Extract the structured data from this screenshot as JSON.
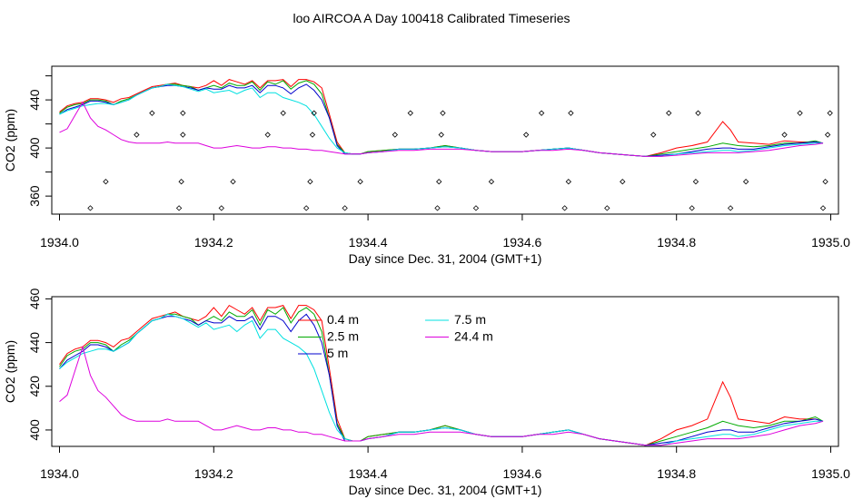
{
  "figure": {
    "title": "loo AIRCOA A  Day 100418  Calibrated Timeseries"
  },
  "chart_data": [
    {
      "type": "scatter",
      "xlabel": "Day since Dec. 31, 2004 (GMT+1)",
      "ylabel": "CO2 (ppm)",
      "xlim": [
        1933.99,
        1935.01
      ],
      "ylim": [
        345,
        468
      ],
      "xticks": [
        1934.0,
        1934.2,
        1934.4,
        1934.6,
        1934.8,
        1935.0
      ],
      "xtick_labels": [
        "1934.0",
        "1934.2",
        "1934.4",
        "1934.6",
        "1934.8",
        "1935.0"
      ],
      "yticks": [
        360,
        400,
        440
      ],
      "ytick_labels": [
        "360",
        "400",
        "440"
      ],
      "ytick_minor": [
        380,
        420,
        460
      ],
      "legend": null,
      "series": [
        {
          "key": "r",
          "color": "#ff0000"
        },
        {
          "key": "g",
          "color": "#00aa00"
        },
        {
          "key": "b",
          "color": "#0000cc"
        },
        {
          "key": "c",
          "color": "#00e0e0"
        },
        {
          "key": "m",
          "color": "#dd00dd"
        }
      ],
      "markers": {
        "x": [
          1934.04,
          1934.06,
          1934.1,
          1934.12,
          1934.155,
          1934.158,
          1934.16,
          1934.16,
          1934.21,
          1934.225,
          1934.27,
          1934.29,
          1934.32,
          1934.325,
          1934.328,
          1934.33,
          1934.37,
          1934.39,
          1934.435,
          1934.455,
          1934.49,
          1934.492,
          1934.495,
          1934.497,
          1934.54,
          1934.56,
          1934.605,
          1934.625,
          1934.655,
          1934.66,
          1934.663,
          1934.71,
          1934.73,
          1934.77,
          1934.79,
          1934.82,
          1934.825,
          1934.828,
          1934.87,
          1934.89,
          1934.94,
          1934.96,
          1934.99,
          1934.993,
          1934.996,
          1934.999
        ],
        "y": [
          350,
          372,
          411,
          429,
          350,
          372,
          411,
          429,
          350,
          372,
          411,
          429,
          350,
          372,
          411,
          429,
          350,
          372,
          411,
          429,
          350,
          372,
          411,
          429,
          350,
          372,
          411,
          429,
          350,
          372,
          429,
          350,
          372,
          411,
          429,
          350,
          372,
          429,
          350,
          372,
          411,
          429,
          350,
          372,
          411,
          429
        ]
      }
    },
    {
      "type": "line",
      "xlabel": "Day since Dec. 31, 2004 (GMT+1)",
      "ylabel": "CO2 (ppm)",
      "xlim": [
        1933.99,
        1935.01
      ],
      "ylim": [
        392.5,
        461
      ],
      "xticks": [
        1934.0,
        1934.2,
        1934.4,
        1934.6,
        1934.8,
        1935.0
      ],
      "xtick_labels": [
        "1934.0",
        "1934.2",
        "1934.4",
        "1934.6",
        "1934.8",
        "1935.0"
      ],
      "yticks": [
        400,
        420,
        440,
        460
      ],
      "ytick_labels": [
        "400",
        "420",
        "440",
        "460"
      ],
      "ytick_minor": [],
      "legend": {
        "position": "top-center",
        "columns": [
          [
            {
              "label": "0.4 m",
              "key": "r"
            },
            {
              "label": "2.5 m",
              "key": "g"
            },
            {
              "label": "5 m",
              "key": "b"
            }
          ],
          [
            {
              "label": "7.5 m",
              "key": "c"
            },
            {
              "label": "24.4 m",
              "key": "m"
            }
          ]
        ]
      },
      "series": [
        {
          "key": "r",
          "color": "#ff0000"
        },
        {
          "key": "g",
          "color": "#00aa00"
        },
        {
          "key": "b",
          "color": "#0000cc"
        },
        {
          "key": "c",
          "color": "#00e0e0"
        },
        {
          "key": "m",
          "color": "#dd00dd"
        }
      ]
    }
  ],
  "timeseries": {
    "x": [
      1934.0,
      1934.01,
      1934.02,
      1934.03,
      1934.04,
      1934.05,
      1934.06,
      1934.07,
      1934.08,
      1934.09,
      1934.1,
      1934.11,
      1934.12,
      1934.13,
      1934.14,
      1934.15,
      1934.16,
      1934.17,
      1934.18,
      1934.19,
      1934.2,
      1934.21,
      1934.22,
      1934.23,
      1934.24,
      1934.25,
      1934.26,
      1934.27,
      1934.28,
      1934.29,
      1934.3,
      1934.31,
      1934.32,
      1934.33,
      1934.34,
      1934.35,
      1934.36,
      1934.37,
      1934.38,
      1934.39,
      1934.4,
      1934.42,
      1934.44,
      1934.46,
      1934.48,
      1934.5,
      1934.52,
      1934.54,
      1934.56,
      1934.58,
      1934.6,
      1934.62,
      1934.64,
      1934.66,
      1934.68,
      1934.7,
      1934.72,
      1934.74,
      1934.76,
      1934.78,
      1934.8,
      1934.82,
      1934.84,
      1934.86,
      1934.87,
      1934.88,
      1934.9,
      1934.92,
      1934.94,
      1934.96,
      1934.98,
      1934.99
    ],
    "r": [
      430,
      435,
      437,
      438,
      441,
      441,
      440,
      438,
      441,
      442,
      445,
      448,
      451,
      452,
      453,
      454,
      452,
      451,
      450,
      452,
      456,
      452,
      457,
      455,
      453,
      456,
      450,
      456,
      456,
      457,
      451,
      457,
      457,
      455,
      450,
      428,
      405,
      396,
      395,
      395,
      397,
      398,
      399,
      399,
      400,
      402,
      400,
      398,
      397,
      397,
      397,
      398,
      399,
      400,
      398,
      396,
      395,
      394,
      393,
      396,
      400,
      402,
      405,
      422,
      415,
      405,
      404,
      403,
      406,
      405,
      405,
      404
    ],
    "g": [
      429,
      434,
      436,
      437,
      440,
      440,
      439,
      436,
      439,
      441,
      444,
      447,
      450,
      451,
      453,
      453,
      452,
      451,
      448,
      450,
      452,
      450,
      454,
      452,
      452,
      455,
      448,
      455,
      453,
      456,
      449,
      454,
      456,
      453,
      445,
      425,
      403,
      396,
      395,
      395,
      397,
      398,
      399,
      399,
      400,
      402,
      400,
      398,
      397,
      397,
      397,
      398,
      399,
      400,
      398,
      396,
      395,
      394,
      393,
      395,
      397,
      399,
      401,
      404,
      403,
      402,
      401,
      402,
      404,
      404,
      406,
      404
    ],
    "b": [
      428,
      432,
      434,
      436,
      439,
      439,
      438,
      436,
      438,
      440,
      444,
      447,
      450,
      451,
      452,
      452,
      451,
      450,
      448,
      450,
      449,
      449,
      452,
      450,
      450,
      452,
      446,
      452,
      452,
      450,
      445,
      450,
      453,
      448,
      440,
      425,
      402,
      395,
      395,
      395,
      396,
      397,
      399,
      399,
      400,
      401,
      400,
      398,
      397,
      397,
      397,
      398,
      399,
      400,
      398,
      396,
      395,
      394,
      393,
      394,
      395,
      397,
      399,
      400,
      400,
      399,
      399,
      401,
      403,
      404,
      405,
      404
    ],
    "c": [
      428,
      431,
      433,
      435,
      436,
      437,
      437,
      436,
      438,
      440,
      444,
      447,
      450,
      451,
      453,
      452,
      451,
      449,
      447,
      449,
      446,
      447,
      448,
      445,
      448,
      450,
      442,
      446,
      446,
      442,
      440,
      438,
      435,
      428,
      418,
      408,
      400,
      396,
      395,
      395,
      396,
      397,
      399,
      399,
      400,
      401,
      400,
      398,
      397,
      397,
      397,
      398,
      399,
      400,
      398,
      396,
      395,
      394,
      393,
      393,
      395,
      396,
      397,
      398,
      398,
      397,
      398,
      400,
      402,
      403,
      404,
      404
    ],
    "m": [
      413,
      416,
      427,
      438,
      425,
      418,
      415,
      411,
      407,
      405,
      404,
      404,
      404,
      404,
      405,
      404,
      404,
      404,
      404,
      402,
      400,
      400,
      401,
      402,
      401,
      400,
      400,
      401,
      401,
      400,
      400,
      399,
      399,
      398,
      398,
      397,
      396,
      395,
      395,
      395,
      396,
      397,
      398,
      398,
      399,
      399,
      399,
      398,
      397,
      397,
      397,
      398,
      398,
      399,
      398,
      396,
      395,
      394,
      393,
      393,
      394,
      395,
      396,
      396,
      396,
      396,
      397,
      398,
      400,
      402,
      403,
      404
    ]
  }
}
